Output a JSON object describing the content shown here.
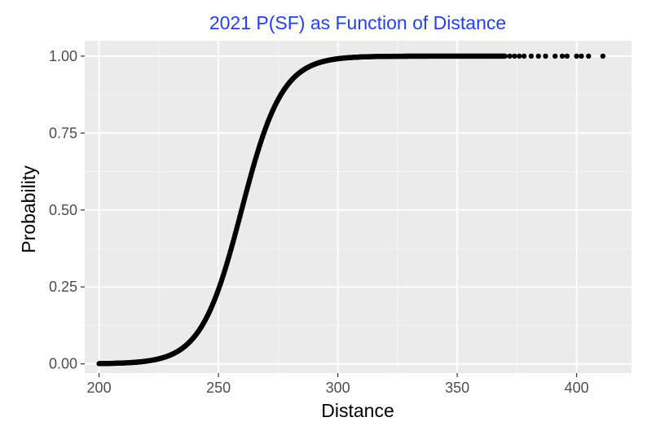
{
  "chart_data": {
    "type": "scatter",
    "title": "2021 P(SF) as Function of Distance",
    "xlabel": "Distance",
    "ylabel": "Probability",
    "xlim": [
      194,
      423
    ],
    "ylim": [
      -0.03,
      1.05
    ],
    "x_ticks": [
      200,
      250,
      300,
      350,
      400
    ],
    "x_tick_labels": [
      "200",
      "250",
      "300",
      "350",
      "400"
    ],
    "y_ticks": [
      0,
      0.25,
      0.5,
      0.75,
      1.0
    ],
    "y_tick_labels": [
      "0.00",
      "0.25",
      "0.50",
      "0.75",
      "1.00"
    ],
    "grid": true,
    "model": {
      "kind": "logistic",
      "midpoint": 259.7,
      "scale": 0.118
    },
    "continuous_range": [
      200,
      370
    ],
    "sparse_points_x": [
      372,
      374,
      376,
      378,
      381,
      384,
      387,
      391,
      394,
      396,
      400,
      402,
      405,
      411
    ],
    "colors": {
      "title": "#1f3fff",
      "panel": "#ebebeb",
      "grid_major": "#ffffff",
      "points": "#000000",
      "tick_text": "#4d4d4d"
    }
  }
}
